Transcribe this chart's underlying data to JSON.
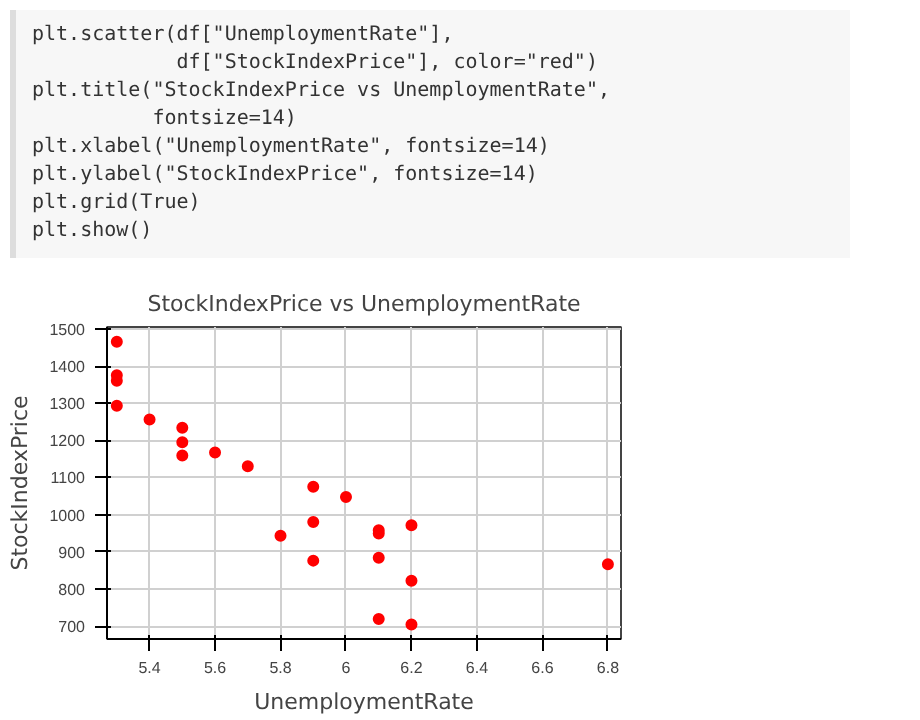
{
  "chart_data": {
    "type": "scatter",
    "title": "StockIndexPrice vs UnemploymentRate",
    "xlabel": "UnemploymentRate",
    "ylabel": "StockIndexPrice",
    "annotations": [
      "plt.scatter(df[\"UnemploymentRate\"],",
      "            df[\"StockIndexPrice\"], color=\"red\")",
      "plt.title(\"StockIndexPrice vs UnemploymentRate\",",
      "          fontsize=14)",
      "plt.xlabel(\"UnemploymentRate\", fontsize=14)",
      "plt.ylabel(\"StockIndexPrice\", fontsize=14)",
      "plt.grid(True)",
      "plt.show()"
    ],
    "x": [
      5.3,
      5.3,
      5.3,
      5.3,
      5.4,
      5.5,
      5.5,
      5.5,
      5.6,
      5.7,
      5.9,
      6.0,
      5.9,
      5.8,
      6.1,
      6.2,
      6.1,
      6.1,
      6.8,
      5.9,
      6.2,
      6.2,
      6.1
    ],
    "series": [
      {
        "color": "#ff0000",
        "values": [
          1465,
          1375,
          1360,
          1293,
          1256,
          1234,
          1195,
          1159,
          1167,
          1130,
          1075,
          1047,
          980,
          943,
          958,
          971,
          949,
          884,
          866,
          876,
          822,
          704,
          719
        ]
      }
    ],
    "xlim": [
      5.27,
      6.84
    ],
    "ylim": [
      665,
      1505
    ],
    "xticks": [
      5.4,
      5.6,
      5.8,
      6.0,
      6.2,
      6.4,
      6.6,
      6.8
    ],
    "yticks": [
      700,
      800,
      900,
      1000,
      1100,
      1200,
      1300,
      1400,
      1500
    ],
    "grid": true,
    "marker": "circle"
  }
}
